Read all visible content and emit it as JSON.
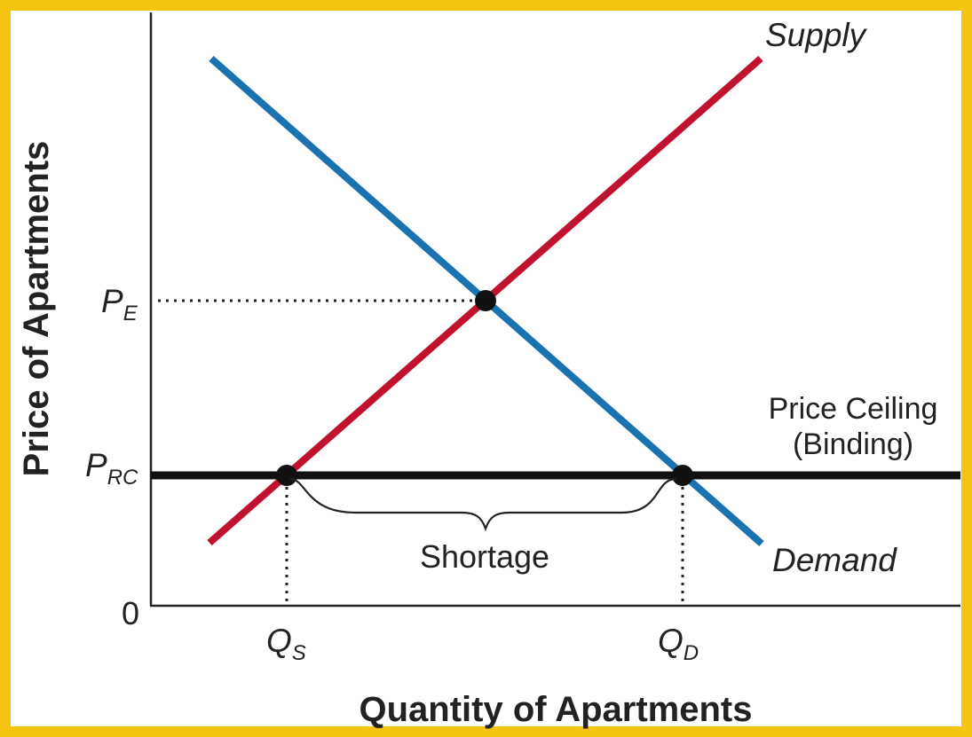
{
  "border_color": "#f5c311",
  "axes": {
    "x_label": "Quantity of Apartments",
    "y_label": "Price of Apartments",
    "origin_label": "0"
  },
  "curves": {
    "supply": {
      "label": "Supply",
      "color": "#c0122e"
    },
    "demand": {
      "label": "Demand",
      "color": "#1a73b0"
    },
    "ceiling": {
      "label_line1": "Price Ceiling",
      "label_line2": "(Binding)",
      "color": "#111111"
    }
  },
  "markers": {
    "pe": {
      "main": "P",
      "sub": "E"
    },
    "prc": {
      "main": "P",
      "sub": "RC"
    },
    "qs": {
      "main": "Q",
      "sub": "S"
    },
    "qd": {
      "main": "Q",
      "sub": "D"
    }
  },
  "shortage_label": "Shortage"
}
